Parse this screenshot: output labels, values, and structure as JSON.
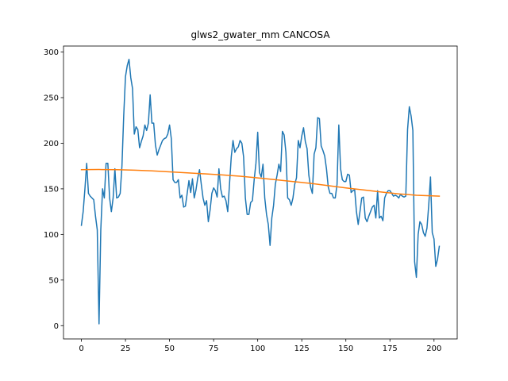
{
  "chart_data": {
    "type": "line",
    "title": "glws2_gwater_mm CANCOSA",
    "xlabel": "",
    "ylabel": "",
    "xlim": [
      -10.15,
      213.15
    ],
    "ylim": [
      -14.55,
      306.55
    ],
    "xticks": [
      0,
      25,
      50,
      75,
      100,
      125,
      150,
      175,
      200
    ],
    "yticks": [
      0,
      50,
      100,
      150,
      200,
      250,
      300
    ],
    "grid": false,
    "legend": "none",
    "series": [
      {
        "color": "#1f77b4",
        "x": [
          0,
          1,
          2,
          3,
          4,
          5,
          6,
          7,
          8,
          9,
          10,
          11,
          12,
          13,
          14,
          15,
          16,
          17,
          18,
          19,
          20,
          21,
          22,
          23,
          24,
          25,
          26,
          27,
          28,
          29,
          30,
          31,
          32,
          33,
          34,
          35,
          36,
          37,
          38,
          39,
          40,
          41,
          42,
          43,
          44,
          45,
          46,
          47,
          48,
          49,
          50,
          51,
          52,
          53,
          54,
          55,
          56,
          57,
          58,
          59,
          60,
          61,
          62,
          63,
          64,
          65,
          66,
          67,
          68,
          69,
          70,
          71,
          72,
          73,
          74,
          75,
          76,
          77,
          78,
          79,
          80,
          81,
          82,
          83,
          84,
          85,
          86,
          87,
          88,
          89,
          90,
          91,
          92,
          93,
          94,
          95,
          96,
          97,
          98,
          99,
          100,
          101,
          102,
          103,
          104,
          105,
          106,
          107,
          108,
          109,
          110,
          111,
          112,
          113,
          114,
          115,
          116,
          117,
          118,
          119,
          120,
          121,
          122,
          123,
          124,
          125,
          126,
          127,
          128,
          129,
          130,
          131,
          132,
          133,
          134,
          135,
          136,
          137,
          138,
          139,
          140,
          141,
          142,
          143,
          144,
          145,
          146,
          147,
          148,
          149,
          150,
          151,
          152,
          153,
          154,
          155,
          156,
          157,
          158,
          159,
          160,
          161,
          162,
          163,
          164,
          165,
          166,
          167,
          168,
          169,
          170,
          171,
          172,
          173,
          174,
          175,
          176,
          177,
          178,
          179,
          180,
          181,
          182,
          183,
          184,
          185,
          186,
          187,
          188,
          189,
          190,
          191,
          192,
          193,
          194,
          195,
          196,
          197,
          198,
          199,
          200,
          201,
          202,
          203
        ],
        "y": [
          110,
          125,
          150,
          178,
          145,
          142,
          140,
          138,
          120,
          105,
          2,
          105,
          150,
          140,
          178,
          178,
          140,
          125,
          140,
          172,
          140,
          141,
          145,
          175,
          230,
          273,
          285,
          292,
          272,
          260,
          210,
          218,
          215,
          195,
          202,
          208,
          220,
          214,
          222,
          253,
          222,
          222,
          198,
          187,
          193,
          198,
          203,
          205,
          206,
          210,
          220,
          205,
          160,
          157,
          157,
          160,
          140,
          143,
          130,
          131,
          145,
          159,
          146,
          161,
          140,
          149,
          162,
          171,
          155,
          140,
          132,
          137,
          114,
          127,
          145,
          151,
          148,
          141,
          172,
          150,
          141,
          142,
          137,
          125,
          155,
          185,
          203,
          190,
          194,
          196,
          203,
          200,
          185,
          140,
          122,
          122,
          135,
          137,
          160,
          178,
          212,
          168,
          163,
          177,
          140,
          122,
          111,
          88,
          118,
          132,
          155,
          165,
          177,
          169,
          213,
          209,
          190,
          140,
          138,
          132,
          140,
          155,
          162,
          203,
          195,
          208,
          217,
          202,
          194,
          165,
          152,
          145,
          188,
          195,
          228,
          227,
          197,
          192,
          186,
          172,
          152,
          145,
          145,
          140,
          140,
          155,
          220,
          172,
          160,
          158,
          158,
          166,
          165,
          146,
          148,
          149,
          125,
          111,
          125,
          140,
          141,
          118,
          114,
          120,
          125,
          130,
          132,
          118,
          148,
          118,
          120,
          115,
          140,
          145,
          148,
          148,
          145,
          142,
          143,
          142,
          140,
          144,
          142,
          141,
          142,
          215,
          240,
          230,
          214,
          70,
          53,
          100,
          114,
          111,
          102,
          98,
          107,
          132,
          163,
          102,
          95,
          65,
          73,
          87
        ]
      },
      {
        "color": "#ff7f0e",
        "x": [
          0,
          10,
          20,
          30,
          40,
          50,
          60,
          70,
          80,
          90,
          100,
          110,
          120,
          130,
          140,
          150,
          160,
          170,
          180,
          190,
          203
        ],
        "y": [
          171.0,
          171.2,
          171.0,
          170.5,
          169.7,
          168.6,
          167.5,
          166.4,
          165.3,
          163.8,
          162.0,
          160.0,
          158.0,
          156.0,
          153.5,
          151.0,
          148.8,
          146.5,
          144.5,
          143.0,
          142.0
        ]
      }
    ]
  }
}
